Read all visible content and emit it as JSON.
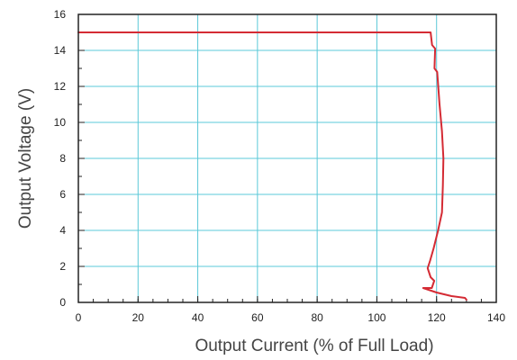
{
  "chart_data": {
    "type": "line",
    "xlabel": "Output Current (% of Full Load)",
    "ylabel": "Output Voltage (V)",
    "xlim": [
      0,
      140
    ],
    "ylim": [
      0,
      16
    ],
    "x_ticks": [
      0,
      20,
      40,
      60,
      80,
      100,
      120,
      140
    ],
    "y_ticks": [
      0,
      2,
      4,
      6,
      8,
      10,
      12,
      14,
      16
    ],
    "grid": true,
    "grid_color": "#5bc8d8",
    "series": [
      {
        "color": "#d42b34",
        "points": [
          [
            0,
            15.0
          ],
          [
            118,
            15.0
          ],
          [
            118.5,
            14.3
          ],
          [
            119.5,
            14.1
          ],
          [
            119.3,
            13.0
          ],
          [
            120.2,
            12.8
          ],
          [
            121.0,
            11.0
          ],
          [
            121.8,
            9.5
          ],
          [
            122.3,
            8.0
          ],
          [
            122.1,
            6.5
          ],
          [
            121.8,
            5.0
          ],
          [
            120.5,
            4.0
          ],
          [
            119.0,
            3.0
          ],
          [
            117.8,
            2.3
          ],
          [
            117.0,
            1.9
          ],
          [
            118.0,
            1.4
          ],
          [
            119.2,
            1.2
          ],
          [
            118.4,
            0.8
          ],
          [
            115.5,
            0.8
          ],
          [
            120.0,
            0.55
          ],
          [
            125.0,
            0.35
          ],
          [
            129.5,
            0.25
          ],
          [
            130.0,
            0.15
          ]
        ]
      }
    ]
  }
}
